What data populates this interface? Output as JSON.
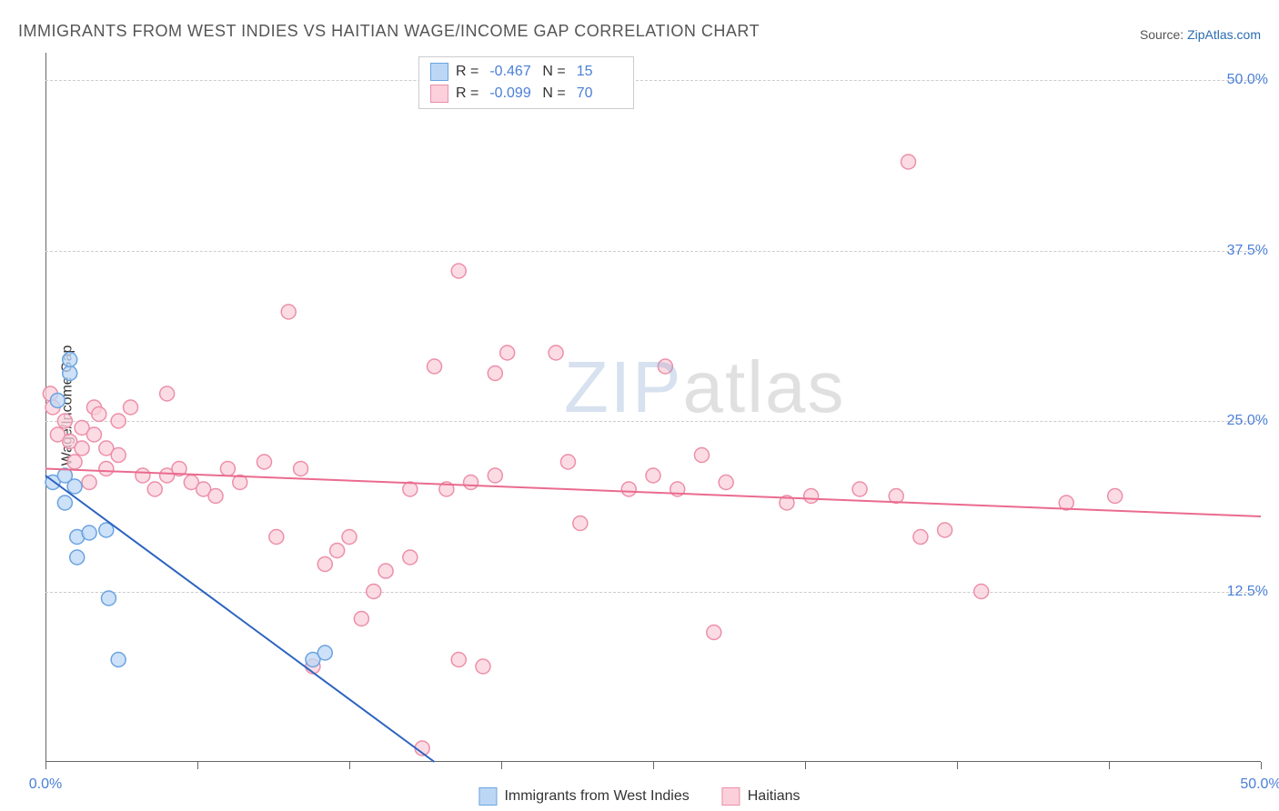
{
  "title": "IMMIGRANTS FROM WEST INDIES VS HAITIAN WAGE/INCOME GAP CORRELATION CHART",
  "source_prefix": "Source: ",
  "source_link": "ZipAtlas.com",
  "ylabel": "Wage/Income Gap",
  "watermark_zip": "ZIP",
  "watermark_atlas": "atlas",
  "chart": {
    "type": "scatter",
    "background_color": "#ffffff",
    "grid_color": "#cccccc",
    "axis_color": "#666666",
    "label_color": "#4a7fd8",
    "xlim": [
      0,
      50
    ],
    "ylim": [
      0,
      52
    ],
    "yticks": [
      12.5,
      25.0,
      37.5,
      50.0
    ],
    "ytick_labels": [
      "12.5%",
      "25.0%",
      "37.5%",
      "50.0%"
    ],
    "xticks": [
      0,
      6.25,
      12.5,
      18.75,
      25,
      31.25,
      37.5,
      43.75,
      50
    ],
    "xtick_labels_shown": {
      "0": "0.0%",
      "50": "50.0%"
    },
    "marker_radius": 8,
    "marker_stroke_width": 1.5,
    "line_width": 2
  },
  "series": {
    "west_indies": {
      "label": "Immigrants from West Indies",
      "fill": "#bcd7f5",
      "stroke": "#6aa3e0",
      "line_color": "#2b63c0",
      "R": "-0.467",
      "N": "15",
      "points": [
        [
          0.3,
          20.5
        ],
        [
          0.5,
          26.5
        ],
        [
          0.8,
          21.0
        ],
        [
          0.8,
          19.0
        ],
        [
          1.0,
          28.5
        ],
        [
          1.0,
          29.5
        ],
        [
          1.2,
          20.2
        ],
        [
          1.3,
          16.5
        ],
        [
          1.3,
          15.0
        ],
        [
          1.8,
          16.8
        ],
        [
          2.5,
          17.0
        ],
        [
          2.6,
          12.0
        ],
        [
          3.0,
          7.5
        ],
        [
          11.0,
          7.5
        ],
        [
          11.5,
          8.0
        ]
      ],
      "trend_line": [
        [
          0,
          21.0
        ],
        [
          16.0,
          0.0
        ]
      ]
    },
    "haitians": {
      "label": "Haitians",
      "fill": "#fbd0db",
      "stroke": "#ec8fa8",
      "line_color": "#ea6b8f",
      "R": "-0.099",
      "N": "70",
      "points": [
        [
          0.2,
          27.0
        ],
        [
          0.3,
          26.0
        ],
        [
          0.5,
          24.0
        ],
        [
          0.8,
          25.0
        ],
        [
          1.0,
          23.5
        ],
        [
          1.2,
          22.0
        ],
        [
          1.5,
          24.5
        ],
        [
          1.5,
          23.0
        ],
        [
          1.8,
          20.5
        ],
        [
          2.0,
          26.0
        ],
        [
          2.0,
          24.0
        ],
        [
          2.2,
          25.5
        ],
        [
          2.5,
          23.0
        ],
        [
          2.5,
          21.5
        ],
        [
          3.0,
          22.5
        ],
        [
          3.0,
          25.0
        ],
        [
          3.5,
          26.0
        ],
        [
          4.0,
          21.0
        ],
        [
          4.5,
          20.0
        ],
        [
          5.0,
          27.0
        ],
        [
          5.0,
          21.0
        ],
        [
          5.5,
          21.5
        ],
        [
          6.0,
          20.5
        ],
        [
          6.5,
          20.0
        ],
        [
          7.0,
          19.5
        ],
        [
          7.5,
          21.5
        ],
        [
          8.0,
          20.5
        ],
        [
          9.0,
          22.0
        ],
        [
          9.5,
          16.5
        ],
        [
          10.0,
          33.0
        ],
        [
          10.5,
          21.5
        ],
        [
          11.0,
          7.0
        ],
        [
          11.5,
          14.5
        ],
        [
          12.0,
          15.5
        ],
        [
          12.5,
          16.5
        ],
        [
          13.0,
          10.5
        ],
        [
          13.5,
          12.5
        ],
        [
          14.0,
          14.0
        ],
        [
          15.0,
          15.0
        ],
        [
          15.0,
          20.0
        ],
        [
          15.5,
          1.0
        ],
        [
          16.0,
          29.0
        ],
        [
          16.5,
          20.0
        ],
        [
          17.0,
          7.5
        ],
        [
          17.0,
          36.0
        ],
        [
          17.5,
          20.5
        ],
        [
          18.0,
          7.0
        ],
        [
          18.5,
          28.5
        ],
        [
          18.5,
          21.0
        ],
        [
          19.0,
          30.0
        ],
        [
          21.0,
          30.0
        ],
        [
          21.5,
          22.0
        ],
        [
          22.0,
          17.5
        ],
        [
          24.0,
          20.0
        ],
        [
          25.0,
          21.0
        ],
        [
          25.5,
          29.0
        ],
        [
          26.0,
          20.0
        ],
        [
          27.0,
          22.5
        ],
        [
          27.5,
          9.5
        ],
        [
          28.0,
          20.5
        ],
        [
          30.5,
          19.0
        ],
        [
          31.5,
          19.5
        ],
        [
          33.5,
          20.0
        ],
        [
          35.0,
          19.5
        ],
        [
          35.5,
          44.0
        ],
        [
          36.0,
          16.5
        ],
        [
          37.0,
          17.0
        ],
        [
          38.5,
          12.5
        ],
        [
          42.0,
          19.0
        ],
        [
          44.0,
          19.5
        ]
      ],
      "trend_line": [
        [
          0,
          21.5
        ],
        [
          50,
          18.0
        ]
      ]
    }
  }
}
